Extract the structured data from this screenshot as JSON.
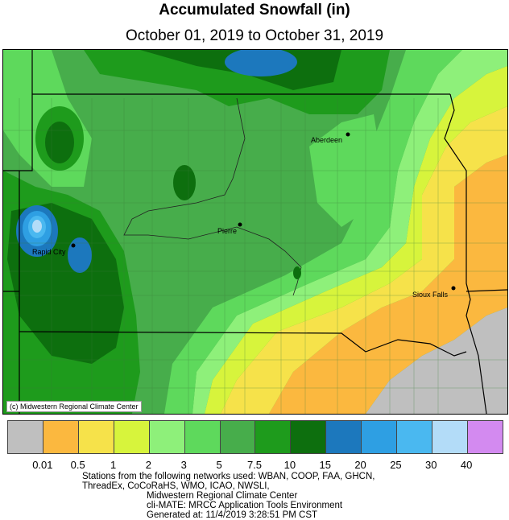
{
  "title": "Accumulated Snowfall (in)",
  "subtitle": "October 01, 2019 to October 31, 2019",
  "copyright": "(c) Midwestern Regional Climate Center",
  "cities": [
    {
      "name": "Aberdeen"
    },
    {
      "name": "Pierre"
    },
    {
      "name": "Rapid City"
    },
    {
      "name": "Sioux Falls"
    }
  ],
  "legend": {
    "colors": [
      "#bfbfbf",
      "#fbb83f",
      "#f6e24a",
      "#d7f43c",
      "#8ef07a",
      "#5ed95c",
      "#47ad4b",
      "#1e9b1c",
      "#0d6f0e",
      "#1c78bd",
      "#2e9fe3",
      "#4ab8f0",
      "#b3dcf8",
      "#d38af0"
    ],
    "labels": [
      "0.01",
      "0.5",
      "1",
      "2",
      "3",
      "5",
      "7.5",
      "10",
      "15",
      "20",
      "25",
      "30",
      "40"
    ]
  },
  "footer": {
    "line1": "Stations from the following networks used: WBAN, COOP, FAA, GHCN,",
    "line2": "ThreadEx, CoCoRaHS, WMO, ICAO, NWSLI,",
    "line3": "Midwestern Regional Climate Center",
    "line4": "cli-MATE: MRCC Application Tools Environment",
    "line5": "Generated at: 11/4/2019 3:28:51 PM CST"
  }
}
